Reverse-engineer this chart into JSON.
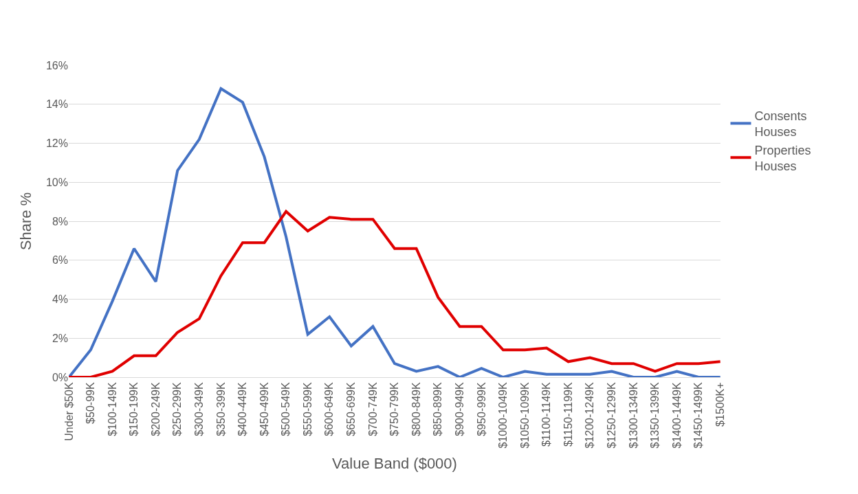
{
  "chart_data": {
    "type": "line",
    "xlabel": "Value Band ($000)",
    "ylabel": "Share %",
    "categories": [
      "Under $50K",
      "$50-99K",
      "$100-149K",
      "$150-199K",
      "$200-249K",
      "$250-299K",
      "$300-349K",
      "$350-399K",
      "$400-449K",
      "$450-499K",
      "$500-549K",
      "$550-599K",
      "$600-649K",
      "$650-699K",
      "$700-749K",
      "$750-799K",
      "$800-849K",
      "$850-899K",
      "$900-949K",
      "$950-999K",
      "$1000-1049K",
      "$1050-1099K",
      "$1100-1149K",
      "$1150-1199K",
      "$1200-1249K",
      "$1250-1299K",
      "$1300-1349K",
      "$1350-1399K",
      "$1400-1449K",
      "$1450-1499K",
      "$1500K+"
    ],
    "series": [
      {
        "name": "Consents Houses",
        "color": "#4472c4",
        "values": [
          0,
          1.4,
          3.9,
          6.6,
          4.9,
          10.6,
          12.2,
          14.8,
          14.1,
          11.3,
          7.2,
          2.2,
          3.1,
          1.6,
          2.6,
          0.7,
          0.3,
          0.55,
          0,
          0.45,
          0,
          0.3,
          0.15,
          0.15,
          0.15,
          0.3,
          0,
          0,
          0.3,
          0,
          0
        ]
      },
      {
        "name": "Properties Houses",
        "color": "#e00000",
        "values": [
          0,
          0,
          0.3,
          1.1,
          1.1,
          2.3,
          3.0,
          5.2,
          6.9,
          6.9,
          8.5,
          7.5,
          8.2,
          8.1,
          8.1,
          6.6,
          6.6,
          4.1,
          2.6,
          2.6,
          1.4,
          1.4,
          1.5,
          0.8,
          1.0,
          0.7,
          0.7,
          0.3,
          0.7,
          0.7,
          0.8
        ]
      }
    ],
    "ylim": [
      0,
      16
    ],
    "yticks": [
      {
        "value": 0,
        "label": "0%"
      },
      {
        "value": 2,
        "label": "2%"
      },
      {
        "value": 4,
        "label": "4%"
      },
      {
        "value": 6,
        "label": "6%"
      },
      {
        "value": 8,
        "label": "8%"
      },
      {
        "value": 10,
        "label": "10%"
      },
      {
        "value": 12,
        "label": "12%"
      },
      {
        "value": 14,
        "label": "14%"
      },
      {
        "value": 16,
        "label": "16%"
      }
    ],
    "grid": "y",
    "legend": "right",
    "marker": "none",
    "line_style": "solid"
  }
}
